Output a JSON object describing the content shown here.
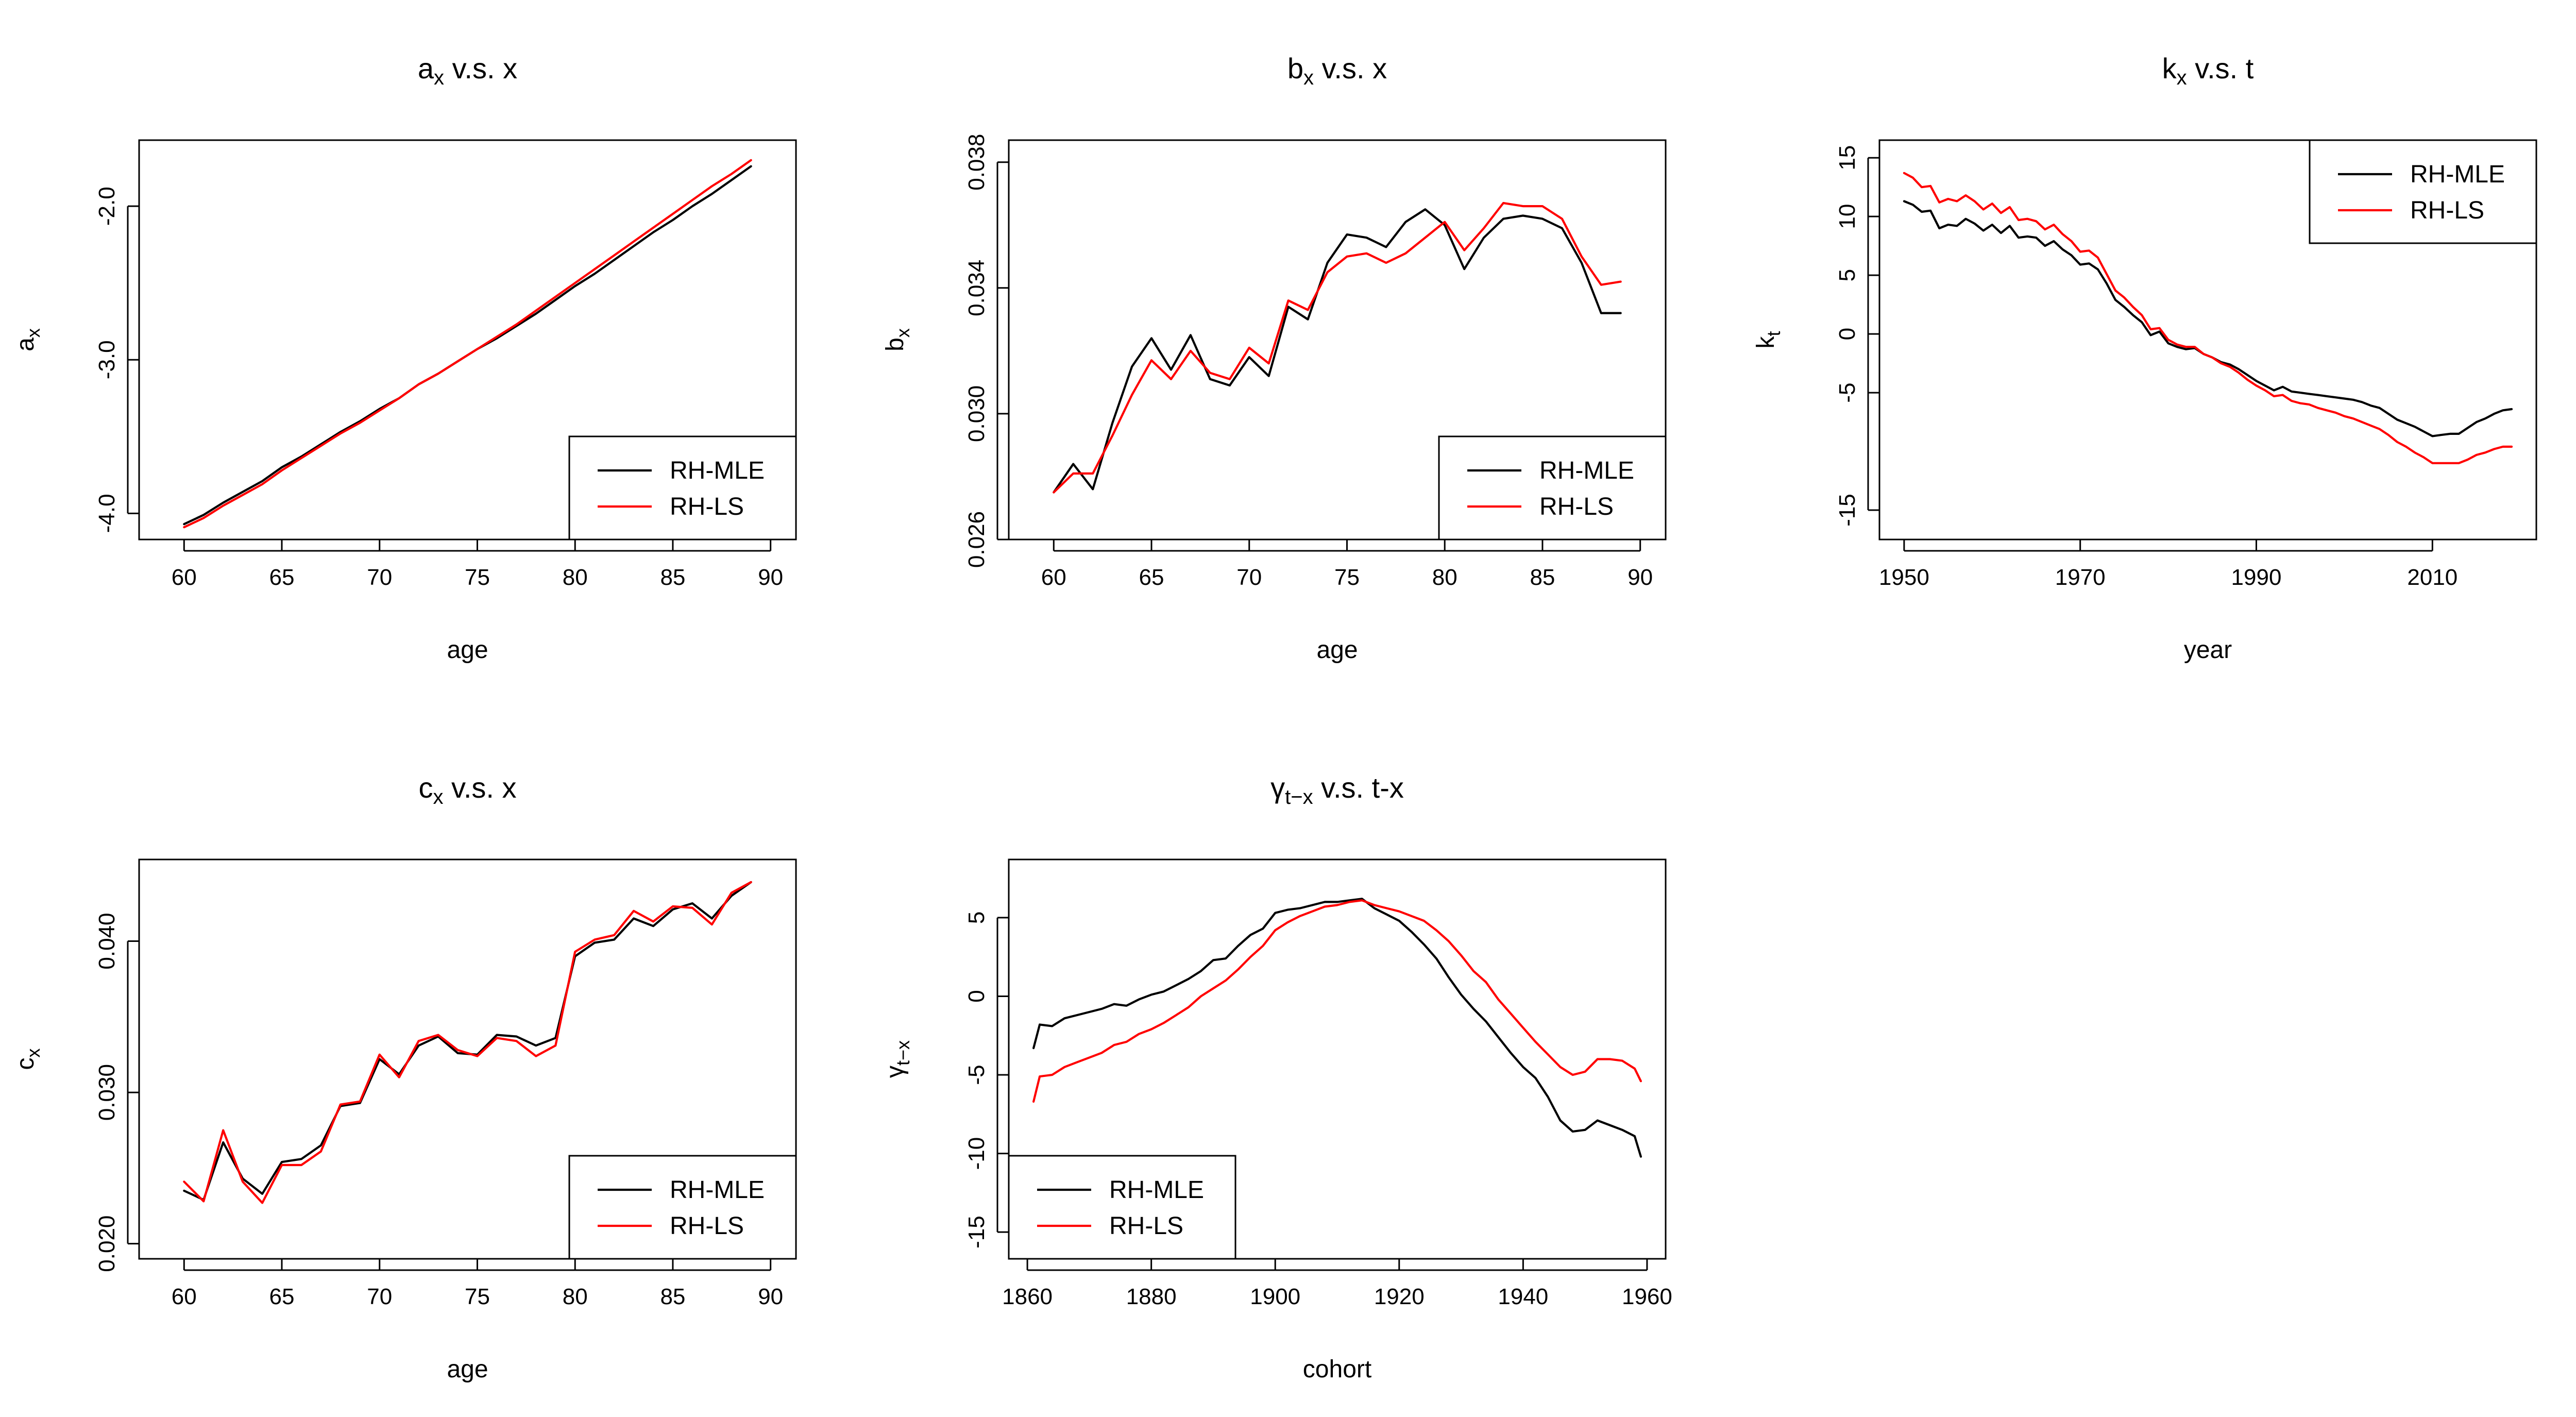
{
  "colors": {
    "RH-MLE": "#000000",
    "RH-LS": "#ff0000"
  },
  "chart_data": [
    {
      "type": "line",
      "title": "aₓ v.s. x",
      "title_base": "a",
      "title_sub": "x",
      "title_rest": " v.s. x",
      "xlabel": "age",
      "ylabel": "a",
      "ylabel_sub": "x",
      "xlim": [
        57.7,
        91.3
      ],
      "ylim": [
        -4.17,
        -1.57
      ],
      "xticks": [
        60,
        65,
        70,
        75,
        80,
        85,
        90
      ],
      "yticks": [
        -4.0,
        -3.0,
        -2.0
      ],
      "ytick_labels": [
        "-4.0",
        "-3.0",
        "-2.0"
      ],
      "legend": "bottom-right",
      "x": [
        60,
        61,
        62,
        63,
        64,
        65,
        66,
        67,
        68,
        69,
        70,
        71,
        72,
        73,
        74,
        75,
        76,
        77,
        78,
        79,
        80,
        81,
        82,
        83,
        84,
        85,
        86,
        87,
        88,
        89
      ],
      "series": [
        {
          "name": "RH-MLE",
          "values": [
            -4.07,
            -4.01,
            -3.93,
            -3.86,
            -3.79,
            -3.7,
            -3.63,
            -3.55,
            -3.47,
            -3.4,
            -3.32,
            -3.25,
            -3.16,
            -3.09,
            -3.01,
            -2.93,
            -2.86,
            -2.78,
            -2.7,
            -2.61,
            -2.52,
            -2.44,
            -2.35,
            -2.26,
            -2.17,
            -2.09,
            -2.0,
            -1.92,
            -1.83,
            -1.74
          ]
        },
        {
          "name": "RH-LS",
          "values": [
            -4.09,
            -4.03,
            -3.95,
            -3.88,
            -3.81,
            -3.72,
            -3.64,
            -3.56,
            -3.48,
            -3.41,
            -3.33,
            -3.25,
            -3.16,
            -3.09,
            -3.01,
            -2.93,
            -2.85,
            -2.77,
            -2.68,
            -2.59,
            -2.5,
            -2.41,
            -2.32,
            -2.23,
            -2.14,
            -2.05,
            -1.96,
            -1.87,
            -1.79,
            -1.7
          ]
        }
      ]
    },
    {
      "type": "line",
      "title": "bₓ v.s. x",
      "title_base": "b",
      "title_sub": "x",
      "title_rest": " v.s. x",
      "xlabel": "age",
      "ylabel": "b",
      "ylabel_sub": "x",
      "xlim": [
        57.7,
        91.3
      ],
      "ylim": [
        0.026,
        0.0387
      ],
      "xticks": [
        60,
        65,
        70,
        75,
        80,
        85,
        90
      ],
      "yticks": [
        0.026,
        0.03,
        0.034,
        0.038
      ],
      "ytick_labels": [
        "0.026",
        "0.030",
        "0.034",
        "0.038"
      ],
      "legend": "bottom-right",
      "x": [
        60,
        61,
        62,
        63,
        64,
        65,
        66,
        67,
        68,
        69,
        70,
        71,
        72,
        73,
        74,
        75,
        76,
        77,
        78,
        79,
        80,
        81,
        82,
        83,
        84,
        85,
        86,
        87,
        88,
        89
      ],
      "series": [
        {
          "name": "RH-MLE",
          "values": [
            0.0275,
            0.0284,
            0.0276,
            0.0297,
            0.0315,
            0.0324,
            0.0314,
            0.0325,
            0.0311,
            0.0309,
            0.0318,
            0.0312,
            0.0334,
            0.033,
            0.0348,
            0.0357,
            0.0356,
            0.0353,
            0.0361,
            0.0365,
            0.036,
            0.0346,
            0.0356,
            0.0362,
            0.0363,
            0.0362,
            0.0359,
            0.0348,
            0.0332,
            0.0332
          ]
        },
        {
          "name": "RH-LS",
          "values": [
            0.0275,
            0.0281,
            0.0281,
            0.0293,
            0.0306,
            0.0317,
            0.0311,
            0.032,
            0.0313,
            0.0311,
            0.0321,
            0.0316,
            0.0336,
            0.0333,
            0.0345,
            0.035,
            0.0351,
            0.0348,
            0.0351,
            0.0356,
            0.0361,
            0.0352,
            0.0359,
            0.0367,
            0.0366,
            0.0366,
            0.0362,
            0.035,
            0.0341,
            0.0342
          ]
        }
      ]
    },
    {
      "type": "line",
      "title": "kₓ v.s. t",
      "title_base": "k",
      "title_sub": "x",
      "title_rest": " v.s. t",
      "xlabel": "year",
      "ylabel": "k",
      "ylabel_sub": "t",
      "xlim": [
        1947.2,
        2021.8
      ],
      "ylim": [
        -17.5,
        16.5
      ],
      "xticks": [
        1950,
        1970,
        1990,
        2010
      ],
      "yticks": [
        -15,
        -5,
        0,
        5,
        10,
        15
      ],
      "ytick_labels": [
        "-15",
        "-5",
        "0",
        "5",
        "10",
        "15"
      ],
      "legend": "top-right",
      "x": [
        1950,
        1951,
        1952,
        1953,
        1954,
        1955,
        1956,
        1957,
        1958,
        1959,
        1960,
        1961,
        1962,
        1963,
        1964,
        1965,
        1966,
        1967,
        1968,
        1969,
        1970,
        1971,
        1972,
        1973,
        1974,
        1975,
        1976,
        1977,
        1978,
        1979,
        1980,
        1981,
        1982,
        1983,
        1984,
        1985,
        1986,
        1987,
        1988,
        1989,
        1990,
        1991,
        1992,
        1993,
        1994,
        1995,
        1996,
        1997,
        1998,
        1999,
        2000,
        2001,
        2002,
        2003,
        2004,
        2005,
        2006,
        2007,
        2008,
        2009,
        2010,
        2011,
        2012,
        2013,
        2014,
        2015,
        2016,
        2017,
        2018,
        2019
      ],
      "series": [
        {
          "name": "RH-MLE",
          "values": [
            11.3,
            11.0,
            10.4,
            10.5,
            9.0,
            9.3,
            9.2,
            9.8,
            9.4,
            8.8,
            9.3,
            8.6,
            9.2,
            8.2,
            8.3,
            8.2,
            7.5,
            7.9,
            7.2,
            6.7,
            5.9,
            6.0,
            5.5,
            4.3,
            2.9,
            2.3,
            1.6,
            1.0,
            -0.1,
            0.2,
            -0.8,
            -1.1,
            -1.3,
            -1.2,
            -1.7,
            -2.0,
            -2.4,
            -2.6,
            -3.0,
            -3.5,
            -4.0,
            -4.4,
            -4.8,
            -4.5,
            -4.9,
            -5.0,
            -5.1,
            -5.2,
            -5.3,
            -5.4,
            -5.5,
            -5.6,
            -5.8,
            -6.1,
            -6.3,
            -6.8,
            -7.3,
            -7.6,
            -7.9,
            -8.3,
            -8.7,
            -8.6,
            -8.5,
            -8.5,
            -8.0,
            -7.5,
            -7.2,
            -6.8,
            -6.5,
            -6.4
          ]
        },
        {
          "name": "RH-LS",
          "values": [
            13.7,
            13.3,
            12.5,
            12.6,
            11.2,
            11.5,
            11.3,
            11.8,
            11.3,
            10.6,
            11.1,
            10.3,
            10.8,
            9.7,
            9.8,
            9.6,
            8.9,
            9.3,
            8.5,
            7.9,
            7.0,
            7.1,
            6.5,
            5.1,
            3.7,
            3.1,
            2.3,
            1.6,
            0.4,
            0.5,
            -0.5,
            -0.9,
            -1.1,
            -1.1,
            -1.7,
            -2.0,
            -2.5,
            -2.8,
            -3.3,
            -3.9,
            -4.4,
            -4.8,
            -5.3,
            -5.2,
            -5.7,
            -5.9,
            -6.0,
            -6.3,
            -6.5,
            -6.7,
            -7.0,
            -7.2,
            -7.5,
            -7.8,
            -8.1,
            -8.6,
            -9.2,
            -9.6,
            -10.1,
            -10.5,
            -11.0,
            -11.0,
            -11.0,
            -11.0,
            -10.7,
            -10.3,
            -10.1,
            -9.8,
            -9.6,
            -9.6
          ]
        }
      ]
    },
    {
      "type": "line",
      "title": "cₓ v.s. x",
      "title_base": "c",
      "title_sub": "x",
      "title_rest": " v.s. x",
      "xlabel": "age",
      "ylabel": "c",
      "ylabel_sub": "x",
      "xlim": [
        57.7,
        91.3
      ],
      "ylim": [
        0.019,
        0.0454
      ],
      "xticks": [
        60,
        65,
        70,
        75,
        80,
        85,
        90
      ],
      "yticks": [
        0.02,
        0.03,
        0.04
      ],
      "ytick_labels": [
        "0.020",
        "0.030",
        "0.040"
      ],
      "legend": "bottom-right",
      "x": [
        60,
        61,
        62,
        63,
        64,
        65,
        66,
        67,
        68,
        69,
        70,
        71,
        72,
        73,
        74,
        75,
        76,
        77,
        78,
        79,
        80,
        81,
        82,
        83,
        84,
        85,
        86,
        87,
        88,
        89
      ],
      "series": [
        {
          "name": "RH-MLE",
          "values": [
            0.0235,
            0.0229,
            0.0267,
            0.0243,
            0.0233,
            0.0254,
            0.0256,
            0.0265,
            0.0291,
            0.0293,
            0.0322,
            0.0312,
            0.0331,
            0.0337,
            0.0326,
            0.0325,
            0.0338,
            0.0337,
            0.0331,
            0.0336,
            0.039,
            0.0399,
            0.0401,
            0.0415,
            0.041,
            0.0421,
            0.0425,
            0.0415,
            0.043,
            0.0439
          ]
        },
        {
          "name": "RH-LS",
          "values": [
            0.0241,
            0.0228,
            0.0275,
            0.0241,
            0.0227,
            0.0252,
            0.0252,
            0.0261,
            0.0292,
            0.0294,
            0.0325,
            0.031,
            0.0334,
            0.0338,
            0.0328,
            0.0324,
            0.0336,
            0.0334,
            0.0324,
            0.0331,
            0.0393,
            0.0401,
            0.0404,
            0.042,
            0.0413,
            0.0423,
            0.0422,
            0.0411,
            0.0432,
            0.0439
          ]
        }
      ]
    },
    {
      "type": "line",
      "title": "γₜ₋ₓ v.s. t-x",
      "title_base": "γ",
      "title_sub": "t−x",
      "title_rest": " v.s. t-x",
      "xlabel": "cohort",
      "ylabel": "γ",
      "ylabel_sub": "t−x",
      "xlim": [
        1857,
        1963
      ],
      "ylim": [
        -16.7,
        8.7
      ],
      "xticks": [
        1860,
        1880,
        1900,
        1920,
        1940,
        1960
      ],
      "yticks": [
        -15,
        -10,
        -5,
        0,
        5
      ],
      "ytick_labels": [
        "-15",
        "-10",
        "-5",
        "0",
        "5"
      ],
      "legend": "bottom-left",
      "x": [
        1861,
        1862,
        1864,
        1866,
        1868,
        1870,
        1872,
        1874,
        1876,
        1878,
        1880,
        1882,
        1884,
        1886,
        1888,
        1890,
        1892,
        1894,
        1896,
        1898,
        1900,
        1902,
        1904,
        1906,
        1908,
        1910,
        1912,
        1914,
        1916,
        1918,
        1920,
        1922,
        1924,
        1926,
        1928,
        1930,
        1932,
        1934,
        1936,
        1938,
        1940,
        1942,
        1944,
        1946,
        1948,
        1950,
        1952,
        1954,
        1956,
        1958,
        1959
      ],
      "series": [
        {
          "name": "RH-MLE",
          "values": [
            -3.3,
            -1.8,
            -1.9,
            -1.4,
            -1.2,
            -1.0,
            -0.8,
            -0.5,
            -0.6,
            -0.2,
            0.1,
            0.3,
            0.7,
            1.1,
            1.6,
            2.3,
            2.4,
            3.2,
            3.9,
            4.3,
            5.3,
            5.5,
            5.6,
            5.8,
            6.0,
            6.0,
            6.1,
            6.2,
            5.6,
            5.2,
            4.8,
            4.1,
            3.3,
            2.4,
            1.2,
            0.1,
            -0.8,
            -1.6,
            -2.6,
            -3.6,
            -4.5,
            -5.2,
            -6.4,
            -7.9,
            -8.6,
            -8.5,
            -7.9,
            -8.2,
            -8.5,
            -8.9,
            -10.2
          ]
        },
        {
          "name": "RH-LS",
          "values": [
            -6.7,
            -5.1,
            -5.0,
            -4.5,
            -4.2,
            -3.9,
            -3.6,
            -3.1,
            -2.9,
            -2.4,
            -2.1,
            -1.7,
            -1.2,
            -0.7,
            0.0,
            0.5,
            1.0,
            1.7,
            2.5,
            3.2,
            4.2,
            4.7,
            5.1,
            5.4,
            5.7,
            5.8,
            6.0,
            6.1,
            5.8,
            5.6,
            5.4,
            5.1,
            4.8,
            4.2,
            3.5,
            2.6,
            1.6,
            0.9,
            -0.2,
            -1.1,
            -2.0,
            -2.9,
            -3.7,
            -4.5,
            -5.0,
            -4.8,
            -4.0,
            -4.0,
            -4.1,
            -4.6,
            -5.4
          ]
        }
      ]
    }
  ]
}
